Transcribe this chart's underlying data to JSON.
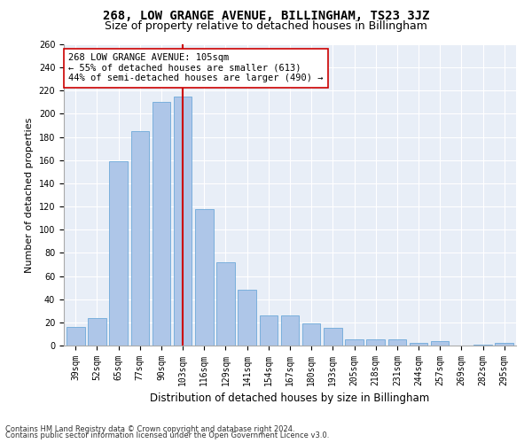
{
  "title": "268, LOW GRANGE AVENUE, BILLINGHAM, TS23 3JZ",
  "subtitle": "Size of property relative to detached houses in Billingham",
  "xlabel": "Distribution of detached houses by size in Billingham",
  "ylabel": "Number of detached properties",
  "categories": [
    "39sqm",
    "52sqm",
    "65sqm",
    "77sqm",
    "90sqm",
    "103sqm",
    "116sqm",
    "129sqm",
    "141sqm",
    "154sqm",
    "167sqm",
    "180sqm",
    "193sqm",
    "205sqm",
    "218sqm",
    "231sqm",
    "244sqm",
    "257sqm",
    "269sqm",
    "282sqm",
    "295sqm"
  ],
  "values": [
    16,
    24,
    159,
    185,
    210,
    215,
    118,
    72,
    48,
    26,
    26,
    19,
    15,
    5,
    5,
    5,
    2,
    4,
    0,
    1,
    2
  ],
  "bar_color": "#aec6e8",
  "bar_edge_color": "#5a9fd4",
  "vline_x_index": 5,
  "vline_color": "#cc0000",
  "annotation_text": "268 LOW GRANGE AVENUE: 105sqm\n← 55% of detached houses are smaller (613)\n44% of semi-detached houses are larger (490) →",
  "annotation_box_color": "#ffffff",
  "annotation_box_edge": "#cc0000",
  "ylim": [
    0,
    260
  ],
  "yticks": [
    0,
    20,
    40,
    60,
    80,
    100,
    120,
    140,
    160,
    180,
    200,
    220,
    240,
    260
  ],
  "background_color": "#e8eef7",
  "footer_line1": "Contains HM Land Registry data © Crown copyright and database right 2024.",
  "footer_line2": "Contains public sector information licensed under the Open Government Licence v3.0.",
  "title_fontsize": 10,
  "subtitle_fontsize": 9,
  "xlabel_fontsize": 8.5,
  "ylabel_fontsize": 8,
  "tick_fontsize": 7,
  "annotation_fontsize": 7.5,
  "footer_fontsize": 6
}
